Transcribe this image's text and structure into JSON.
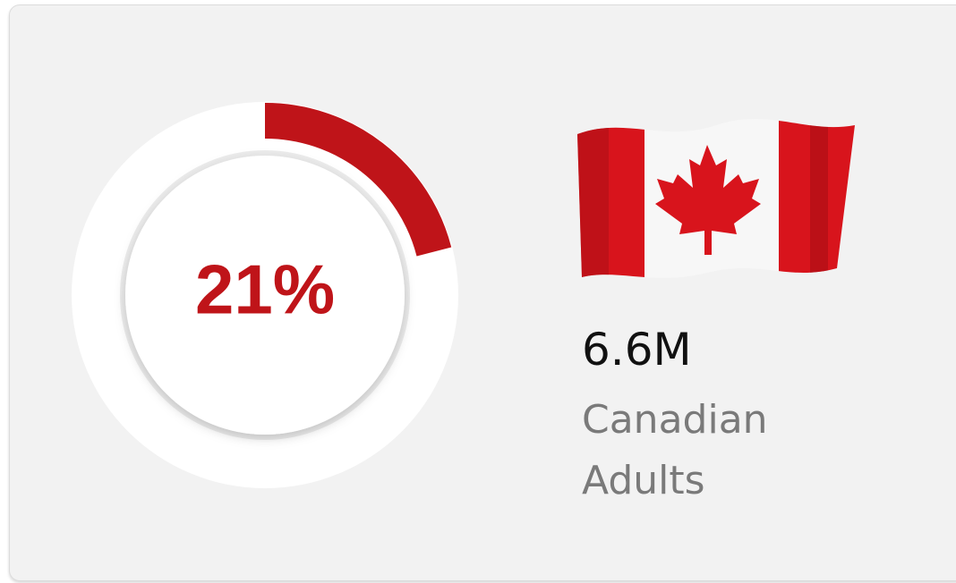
{
  "chart_data": {
    "type": "donut",
    "values": [
      21
    ],
    "value_labels": [
      "21%"
    ],
    "color": "#bf1419",
    "track_color": "#ffffff"
  },
  "stat": {
    "value": "6.6M",
    "label": "Canadian Adults"
  }
}
